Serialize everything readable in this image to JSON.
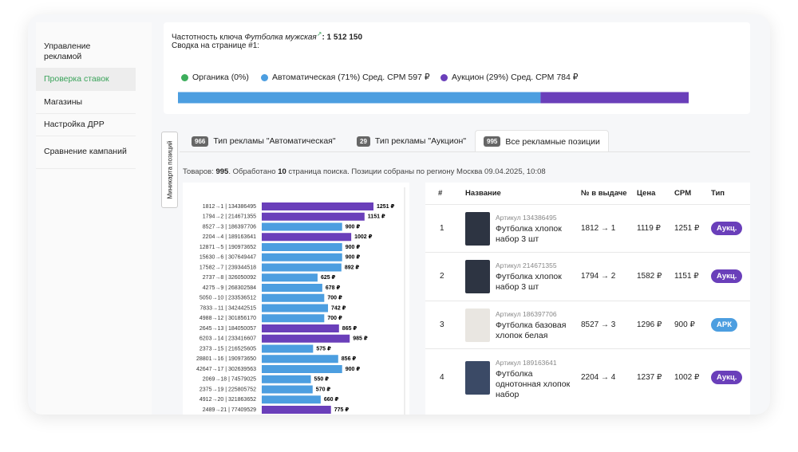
{
  "sidebar": {
    "items": [
      "Управление рекламой",
      "Проверка ставок",
      "Магазины",
      "Настройка ДРР",
      "Сравнение кампаний"
    ],
    "active": 1
  },
  "summary": {
    "keyword_label": "Частотность ключа",
    "keyword": "Футболка мужская",
    "frequency": ": 1 512 150",
    "title": "Сводка на странице #1:",
    "segments": [
      {
        "label": "Органика (0%)",
        "share": 0,
        "color": "#3dae5c"
      },
      {
        "label": "Автоматическая (71%) Сред. CPM 597 ₽",
        "share": 71,
        "color": "#4c9ee0"
      },
      {
        "label": "Аукцион (29%) Сред. CPM 784 ₽",
        "share": 29,
        "color": "#6a3fba"
      }
    ]
  },
  "minimap_label": "Миникарта позиций",
  "tabs": [
    {
      "count": "966",
      "label": "Тип рекламы \"Автоматическая\"",
      "active": false
    },
    {
      "count": "29",
      "label": "Тип рекламы \"Аукцион\"",
      "active": false
    },
    {
      "count": "995",
      "label": "Все рекламные позиции",
      "active": true
    }
  ],
  "status": [
    {
      "text": "Товаров: ",
      "bold": false
    },
    {
      "text": "995",
      "bold": true
    },
    {
      "text": ". Обработано ",
      "bold": false
    },
    {
      "text": "10",
      "bold": true
    },
    {
      "text": " страница поиска. Позиции собраны по региону Москва 09.04.2025, 10:08",
      "bold": false
    }
  ],
  "chart_data": {
    "type": "bar",
    "orientation": "horizontal",
    "categories": [
      "1812→1 | 134386495",
      "1794→2 | 214671355",
      "8527→3 | 186397706",
      "2204→4 | 189163641",
      "12871→5 | 190973652",
      "15630→6 | 307649447",
      "17582→7 | 239344518",
      "2737→8 | 326050092",
      "4275→9 | 268302584",
      "5050→10 | 233536512",
      "7833→11 | 342442515",
      "4988→12 | 301856170",
      "2645→13 | 184050057",
      "6203→14 | 233416607",
      "2373→15 | 216525605",
      "28801→16 | 190973650",
      "42647→17 | 302639563",
      "2069→18 | 74579025",
      "2375→19 | 225805752",
      "4912→20 | 321863652",
      "2489→21 | 77409529"
    ],
    "values": [
      1251,
      1151,
      900,
      1002,
      900,
      900,
      892,
      625,
      678,
      700,
      742,
      700,
      865,
      985,
      575,
      856,
      900,
      550,
      570,
      660,
      775
    ],
    "value_labels": [
      "1251 ₽",
      "1151 ₽",
      "900 ₽",
      "1002 ₽",
      "900 ₽",
      "900 ₽",
      "892 ₽",
      "625 ₽",
      "678 ₽",
      "700 ₽",
      "742 ₽",
      "700 ₽",
      "865 ₽",
      "985 ₽",
      "575 ₽",
      "856 ₽",
      "900 ₽",
      "550 ₽",
      "570 ₽",
      "660 ₽",
      "775 ₽"
    ],
    "colors": [
      "#6a3fba",
      "#6a3fba",
      "#4c9ee0",
      "#6a3fba",
      "#4c9ee0",
      "#4c9ee0",
      "#4c9ee0",
      "#4c9ee0",
      "#4c9ee0",
      "#4c9ee0",
      "#4c9ee0",
      "#4c9ee0",
      "#6a3fba",
      "#6a3fba",
      "#4c9ee0",
      "#4c9ee0",
      "#4c9ee0",
      "#4c9ee0",
      "#4c9ee0",
      "#4c9ee0",
      "#6a3fba"
    ]
  },
  "table": {
    "columns": [
      "#",
      "Название",
      "№ в выдаче",
      "Цена",
      "CPM",
      "Тип"
    ],
    "rows": [
      {
        "rank": "1",
        "article": "Артикул 134386495",
        "name": "Футболка хлопок набор 3 шт",
        "position": "1812 → 1",
        "price": "1119 ₽",
        "cpm": "1251 ₽",
        "type": "Аукц.",
        "type_color": "#6a3fba"
      },
      {
        "rank": "2",
        "article": "Артикул 214671355",
        "name": "Футболка хлопок набор 3 шт",
        "position": "1794 → 2",
        "price": "1582 ₽",
        "cpm": "1151 ₽",
        "type": "Аукц.",
        "type_color": "#6a3fba"
      },
      {
        "rank": "3",
        "article": "Артикул 186397706",
        "name": "Футболка базовая хлопок белая",
        "position": "8527 → 3",
        "price": "1296 ₽",
        "cpm": "900 ₽",
        "type": "АРК",
        "type_color": "#4c9ee0"
      },
      {
        "rank": "4",
        "article": "Артикул 189163641",
        "name": "Футболка однотонная хлопок набор",
        "position": "2204 → 4",
        "price": "1237 ₽",
        "cpm": "1002 ₽",
        "type": "Аукц.",
        "type_color": "#6a3fba"
      }
    ]
  }
}
